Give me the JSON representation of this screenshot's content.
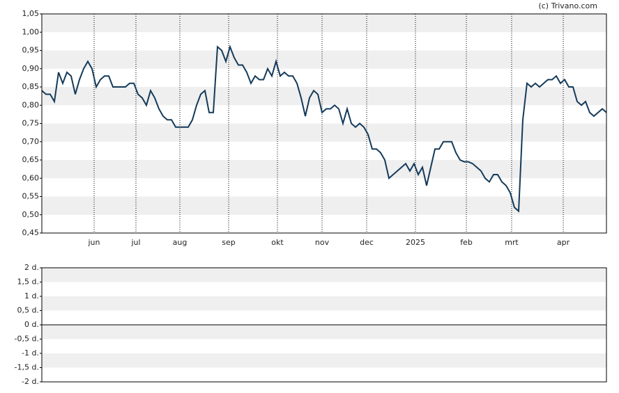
{
  "source": "(c) Trivano.com",
  "chart_data": [
    {
      "type": "line",
      "ylim": [
        0.45,
        1.05
      ],
      "yticks": [
        {
          "value": 0.45,
          "label": "0,45"
        },
        {
          "value": 0.5,
          "label": "0,50"
        },
        {
          "value": 0.55,
          "label": "0,55"
        },
        {
          "value": 0.6,
          "label": "0,60"
        },
        {
          "value": 0.65,
          "label": "0,65"
        },
        {
          "value": 0.7,
          "label": "0,70"
        },
        {
          "value": 0.75,
          "label": "0,75"
        },
        {
          "value": 0.8,
          "label": "0,80"
        },
        {
          "value": 0.85,
          "label": "0,85"
        },
        {
          "value": 0.9,
          "label": "0,90"
        },
        {
          "value": 0.95,
          "label": "0,95"
        },
        {
          "value": 1.0,
          "label": "1,00"
        },
        {
          "value": 1.05,
          "label": "1,05"
        }
      ],
      "xlim": [
        0,
        135
      ],
      "xticks": [
        {
          "value": 12.5,
          "label": "jun"
        },
        {
          "value": 22.5,
          "label": "jul"
        },
        {
          "value": 33,
          "label": "aug"
        },
        {
          "value": 44.67,
          "label": "sep"
        },
        {
          "value": 56.33,
          "label": "okt"
        },
        {
          "value": 67,
          "label": "nov"
        },
        {
          "value": 77.67,
          "label": "dec"
        },
        {
          "value": 89.33,
          "label": "2025"
        },
        {
          "value": 101.5,
          "label": "feb"
        },
        {
          "value": 112.33,
          "label": "mrt"
        },
        {
          "value": 124.67,
          "label": "apr"
        }
      ],
      "color": "#143a5a",
      "values": [
        0.84,
        0.83,
        0.83,
        0.81,
        0.89,
        0.86,
        0.89,
        0.88,
        0.83,
        0.87,
        0.9,
        0.92,
        0.9,
        0.85,
        0.87,
        0.88,
        0.88,
        0.85,
        0.85,
        0.85,
        0.85,
        0.86,
        0.86,
        0.83,
        0.82,
        0.8,
        0.84,
        0.82,
        0.79,
        0.77,
        0.76,
        0.76,
        0.74,
        0.74,
        0.74,
        0.74,
        0.76,
        0.8,
        0.83,
        0.84,
        0.78,
        0.78,
        0.96,
        0.95,
        0.92,
        0.96,
        0.93,
        0.91,
        0.91,
        0.89,
        0.86,
        0.88,
        0.87,
        0.87,
        0.9,
        0.88,
        0.92,
        0.88,
        0.89,
        0.88,
        0.88,
        0.86,
        0.82,
        0.77,
        0.82,
        0.84,
        0.83,
        0.78,
        0.79,
        0.79,
        0.8,
        0.79,
        0.75,
        0.79,
        0.75,
        0.74,
        0.75,
        0.74,
        0.72,
        0.68,
        0.68,
        0.67,
        0.65,
        0.6,
        0.61,
        0.62,
        0.63,
        0.64,
        0.62,
        0.64,
        0.61,
        0.63,
        0.58,
        0.63,
        0.68,
        0.68,
        0.7,
        0.7,
        0.7,
        0.67,
        0.65,
        0.645,
        0.645,
        0.64,
        0.63,
        0.62,
        0.6,
        0.59,
        0.61,
        0.61,
        0.59,
        0.58,
        0.56,
        0.52,
        0.51,
        0.76,
        0.86,
        0.85,
        0.86,
        0.85,
        0.86,
        0.87,
        0.87,
        0.88,
        0.86,
        0.87,
        0.85,
        0.85,
        0.81,
        0.8,
        0.81,
        0.78,
        0.77,
        0.78,
        0.79,
        0.78
      ]
    },
    {
      "type": "line",
      "ylim": [
        -2,
        2
      ],
      "yticks": [
        {
          "value": -2,
          "label": "-2 d."
        },
        {
          "value": -1.5,
          "label": "-1,5 d."
        },
        {
          "value": -1,
          "label": "-1 d."
        },
        {
          "value": -0.5,
          "label": "-0,5 d."
        },
        {
          "value": 0,
          "label": "0 d."
        },
        {
          "value": 0.5,
          "label": "0,5 d."
        },
        {
          "value": 1,
          "label": "1 d."
        },
        {
          "value": 1.5,
          "label": "1,5 d."
        },
        {
          "value": 2,
          "label": "2 d."
        }
      ]
    }
  ]
}
